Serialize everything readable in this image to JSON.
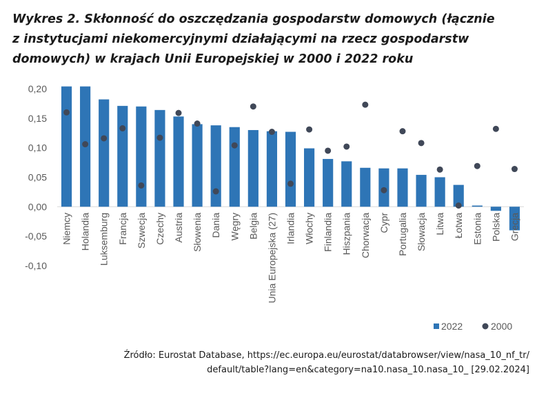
{
  "title_line1": "Wykres 2. Skłonność do oszczędzania gospodarstw domowych (łącznie",
  "title_line2": "z instytucjami niekomercyjnymi działającymi na rzecz gospodarstw",
  "title_line3": "domowych) w krajach Unii Europejskiej w 2000 i 2022 roku",
  "source_line1": "Źródło: Eurostat Database, https://ec.europa.eu/eurostat/databrowser/view/nasa_10_nf_tr/",
  "source_line2": "default/table?lang=en&category=na10.nasa_10.nasa_10_ [29.02.2024]",
  "colors": {
    "bar": "#2e75b6",
    "dot": "#404858",
    "axis": "#d9d9d9",
    "grid": "#d9d9d9"
  },
  "chart_data": {
    "type": "bar",
    "categories": [
      "Niemcy",
      "Holandia",
      "Luksemburg",
      "Francja",
      "Szwecja",
      "Czechy",
      "Austria",
      "Słowenia",
      "Dania",
      "Węgry",
      "Belgia",
      "Unia Europejska (27)",
      "Irlandia",
      "Włochy",
      "Finlandia",
      "Hiszpania",
      "Chorwacja",
      "Cypr",
      "Portugalia",
      "Słowacja",
      "Litwa",
      "Łotwa",
      "Estonia",
      "Polska",
      "Grecja"
    ],
    "series": [
      {
        "name": "2022",
        "kind": "bar",
        "values": [
          0.204,
          0.204,
          0.182,
          0.171,
          0.17,
          0.164,
          0.153,
          0.14,
          0.138,
          0.135,
          0.13,
          0.128,
          0.127,
          0.099,
          0.081,
          0.077,
          0.066,
          0.065,
          0.065,
          0.054,
          0.05,
          0.037,
          0.002,
          -0.007,
          -0.04
        ]
      },
      {
        "name": "2000",
        "kind": "dot",
        "values": [
          0.16,
          0.106,
          0.116,
          0.133,
          0.036,
          0.117,
          0.159,
          0.141,
          0.026,
          0.104,
          0.17,
          0.127,
          0.039,
          0.131,
          0.095,
          0.102,
          0.173,
          0.028,
          0.128,
          0.108,
          0.063,
          0.002,
          0.069,
          0.132,
          0.064
        ]
      }
    ],
    "ylim": [
      -0.1,
      0.2
    ],
    "yticks": [
      "0,20",
      "0,15",
      "0,10",
      "0,05",
      "0,00",
      "-0,05",
      "-0,10"
    ],
    "ytick_values": [
      0.2,
      0.15,
      0.1,
      0.05,
      0.0,
      -0.05,
      -0.1
    ],
    "legend": {
      "position": "bottom-right",
      "items": [
        "2022",
        "2000"
      ]
    },
    "grid": false
  }
}
